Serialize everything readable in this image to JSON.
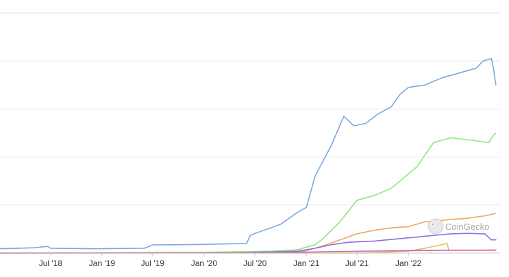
{
  "chart_data": {
    "type": "line",
    "title": "",
    "xlabel": "",
    "ylabel": "",
    "x_range": [
      "2018-01-01",
      "2022-11-25"
    ],
    "y_range": [
      0,
      1
    ],
    "grid": true,
    "legend": "none",
    "x_ticks": [
      "Jul '18",
      "Jan '19",
      "Jul '19",
      "Jan '20",
      "Jul '20",
      "Jan '21",
      "Jul '21",
      "Jan '22"
    ],
    "x_tick_dates": [
      "2018-07-01",
      "2019-01-01",
      "2019-07-01",
      "2020-01-01",
      "2020-07-01",
      "2021-01-01",
      "2021-07-01",
      "2022-01-01"
    ],
    "series": [
      {
        "color": "#7ba7e1",
        "x": [
          "2018-01-01",
          "2018-05-01",
          "2018-06-20",
          "2018-07-01",
          "2018-12-01",
          "2019-06-01",
          "2019-07-01",
          "2019-12-15",
          "2020-06-01",
          "2020-06-15",
          "2020-10-01",
          "2020-12-01",
          "2021-01-01",
          "2021-02-01",
          "2021-04-01",
          "2021-05-15",
          "2021-06-20",
          "2021-08-01",
          "2021-09-15",
          "2021-11-01",
          "2021-12-01",
          "2022-01-01",
          "2022-03-01",
          "2022-05-01",
          "2022-07-01",
          "2022-09-01",
          "2022-09-25",
          "2022-10-25",
          "2022-11-01",
          "2022-11-10"
        ],
        "y": [
          0.018,
          0.022,
          0.028,
          0.02,
          0.018,
          0.02,
          0.034,
          0.036,
          0.04,
          0.075,
          0.12,
          0.17,
          0.19,
          0.32,
          0.45,
          0.57,
          0.53,
          0.54,
          0.58,
          0.61,
          0.66,
          0.69,
          0.7,
          0.73,
          0.75,
          0.77,
          0.8,
          0.81,
          0.77,
          0.7
        ]
      },
      {
        "color": "#8ee67e",
        "x": [
          "2018-01-01",
          "2019-01-01",
          "2020-01-01",
          "2020-09-01",
          "2020-12-01",
          "2021-02-01",
          "2021-03-01",
          "2021-05-01",
          "2021-07-01",
          "2021-09-01",
          "2021-11-01",
          "2022-01-01",
          "2022-02-01",
          "2022-04-01",
          "2022-06-01",
          "2022-08-15",
          "2022-10-15",
          "2022-11-01",
          "2022-11-10"
        ],
        "y": [
          0,
          0.001,
          0.003,
          0.008,
          0.014,
          0.035,
          0.06,
          0.13,
          0.22,
          0.24,
          0.27,
          0.33,
          0.36,
          0.46,
          0.48,
          0.47,
          0.46,
          0.49,
          0.5
        ]
      },
      {
        "color": "#f0a460",
        "x": [
          "2018-01-01",
          "2020-01-01",
          "2020-12-01",
          "2021-01-01",
          "2021-03-01",
          "2021-05-01",
          "2021-07-01",
          "2021-09-01",
          "2021-11-01",
          "2022-01-01",
          "2022-03-01",
          "2022-06-01",
          "2022-08-01",
          "2022-10-01",
          "2022-11-10"
        ],
        "y": [
          0,
          0.001,
          0.003,
          0.01,
          0.03,
          0.055,
          0.08,
          0.095,
          0.105,
          0.11,
          0.13,
          0.14,
          0.145,
          0.155,
          0.165
        ]
      },
      {
        "color": "#8a70e0",
        "x": [
          "2018-01-01",
          "2020-06-01",
          "2020-12-01",
          "2021-02-01",
          "2021-04-01",
          "2021-06-01",
          "2021-09-01",
          "2021-12-01",
          "2022-03-01",
          "2022-06-01",
          "2022-08-01",
          "2022-10-01",
          "2022-10-25",
          "2022-11-10"
        ],
        "y": [
          0,
          0.002,
          0.008,
          0.02,
          0.035,
          0.045,
          0.05,
          0.06,
          0.07,
          0.08,
          0.082,
          0.08,
          0.055,
          0.055
        ]
      },
      {
        "color": "#e0c050",
        "x": [
          "2018-01-01",
          "2021-08-01",
          "2021-10-01",
          "2022-01-01",
          "2022-03-01",
          "2022-05-20",
          "2022-05-25",
          "2022-07-01",
          "2022-09-01",
          "2022-11-10"
        ],
        "y": [
          0,
          0,
          0.003,
          0.008,
          0.02,
          0.04,
          0.012,
          0.012,
          0.012,
          0.013
        ]
      },
      {
        "color": "#d060b0",
        "x": [
          "2018-01-01",
          "2020-09-01",
          "2021-01-01",
          "2021-06-01",
          "2022-01-01",
          "2022-06-01",
          "2022-11-10"
        ],
        "y": [
          0,
          0.001,
          0.004,
          0.007,
          0.01,
          0.012,
          0.012
        ]
      }
    ]
  },
  "watermark": {
    "text": "CoinGecko"
  }
}
